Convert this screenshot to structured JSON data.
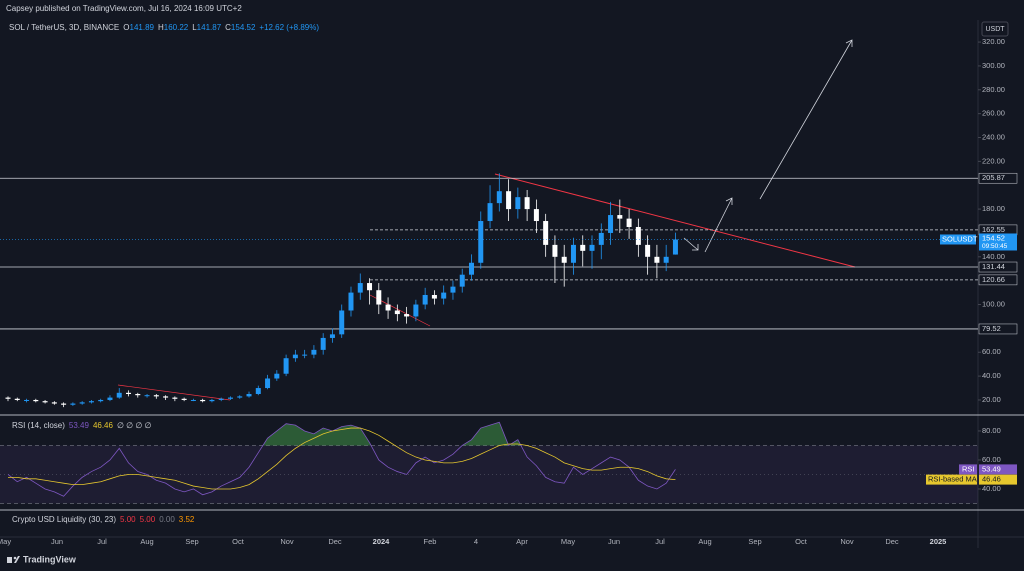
{
  "header": {
    "publisher": "Capsey published on TradingView.com, Jul 16, 2024 16:09 UTC+2",
    "symbol": "SOL / TetherUS, 3D, BINANCE",
    "change": "+12.62 (+8.89%)",
    "currency": "USDT",
    "ticker_tag": "SOLUSDT",
    "countdown": "09:50:45"
  },
  "chart_data": {
    "type": "candlestick",
    "open": [
      22,
      21,
      20,
      20,
      19,
      18,
      17,
      16,
      17,
      18,
      19,
      20,
      22,
      26,
      25,
      24,
      24,
      23,
      22,
      21,
      20,
      20,
      19,
      20,
      21,
      22,
      23,
      25,
      30,
      38,
      42,
      55,
      58,
      58,
      62,
      72,
      75,
      95,
      110,
      118,
      112,
      100,
      95,
      92,
      90,
      100,
      108,
      105,
      110,
      115,
      125,
      135,
      170,
      185,
      195,
      180,
      190,
      180,
      170,
      150,
      140,
      135,
      150,
      145,
      150,
      160,
      175,
      172,
      165,
      150,
      140,
      135,
      141.89
    ],
    "high": [
      23,
      22,
      21,
      21,
      20,
      19,
      18,
      18,
      19,
      20,
      21,
      24,
      30,
      28,
      26,
      25,
      25,
      24,
      23,
      22,
      21,
      21,
      21,
      22,
      23,
      24,
      27,
      32,
      41,
      45,
      58,
      62,
      62,
      66,
      76,
      80,
      100,
      115,
      126,
      122,
      118,
      106,
      100,
      98,
      104,
      114,
      112,
      116,
      120,
      130,
      142,
      178,
      200,
      210,
      205,
      198,
      196,
      188,
      176,
      158,
      150,
      156,
      158,
      158,
      168,
      186,
      188,
      180,
      172,
      158,
      150,
      150,
      160.22
    ],
    "low": [
      19,
      19,
      18,
      18,
      17,
      16,
      14,
      15,
      16,
      17,
      18,
      19,
      21,
      23,
      22,
      22,
      21,
      20,
      19,
      19,
      19,
      18,
      18,
      19,
      20,
      21,
      22,
      24,
      29,
      36,
      40,
      52,
      55,
      55,
      58,
      68,
      72,
      90,
      104,
      100,
      92,
      88,
      86,
      84,
      86,
      96,
      100,
      100,
      104,
      110,
      120,
      130,
      164,
      178,
      170,
      172,
      170,
      160,
      140,
      118,
      115,
      125,
      132,
      130,
      138,
      150,
      160,
      155,
      140,
      125,
      122,
      128,
      141.87
    ],
    "close": [
      21,
      20,
      20,
      19,
      18,
      17,
      16,
      17,
      18,
      19,
      20,
      22,
      26,
      25,
      24,
      24,
      23,
      22,
      21,
      20,
      20,
      19,
      20,
      21,
      22,
      23,
      25,
      30,
      38,
      42,
      55,
      58,
      58,
      62,
      72,
      75,
      95,
      110,
      118,
      112,
      100,
      95,
      92,
      90,
      100,
      108,
      105,
      110,
      115,
      125,
      135,
      170,
      185,
      195,
      180,
      190,
      180,
      170,
      150,
      140,
      135,
      150,
      145,
      150,
      160,
      175,
      172,
      165,
      150,
      140,
      135,
      140,
      154.52
    ],
    "up_color": "#2196f3",
    "down_color": "#ffffff",
    "ylim": [
      7.4,
      338.5
    ],
    "yticks": [
      {
        "value": 20,
        "label": "20.00"
      },
      {
        "value": 40,
        "label": "40.00"
      },
      {
        "value": 60,
        "label": "60.00"
      },
      {
        "value": 100,
        "label": "100.00"
      },
      {
        "value": 140,
        "label": "140.00"
      },
      {
        "value": 180,
        "label": "180.00"
      },
      {
        "value": 220,
        "label": "220.00"
      },
      {
        "value": 240,
        "label": "240.00"
      },
      {
        "value": 260,
        "label": "260.00"
      },
      {
        "value": 280,
        "label": "280.00"
      },
      {
        "value": 300,
        "label": "300.00"
      },
      {
        "value": 320,
        "label": "320.00"
      }
    ],
    "levels": [
      205.87,
      162.55,
      131.44,
      120.66,
      79.52
    ],
    "levels_dashed": [
      false,
      true,
      false,
      true,
      false
    ],
    "x_labels": [
      "May",
      "Jun",
      "Jul",
      "Aug",
      "Sep",
      "Oct",
      "Nov",
      "Dec",
      "2024",
      "Feb",
      "4",
      "Apr",
      "May",
      "Jun",
      "Jul",
      "Aug",
      "Sep",
      "Oct",
      "Nov",
      "Dec",
      "2025"
    ],
    "rsi_title": "RSI (14, close)",
    "rsi_extra": "∅ ∅ ∅ ∅",
    "rsi_name": "RSI",
    "ma_name": "RSI-based MA",
    "rsi": [
      50,
      45,
      48,
      44,
      40,
      38,
      35,
      42,
      48,
      52,
      55,
      60,
      68,
      58,
      52,
      50,
      46,
      44,
      40,
      38,
      40,
      36,
      38,
      42,
      45,
      48,
      55,
      65,
      75,
      80,
      85,
      84,
      80,
      78,
      82,
      80,
      83,
      84,
      82,
      72,
      60,
      55,
      52,
      50,
      58,
      62,
      58,
      60,
      64,
      70,
      74,
      82,
      84,
      86,
      70,
      74,
      62,
      56,
      48,
      45,
      44,
      55,
      50,
      54,
      58,
      62,
      60,
      55,
      46,
      42,
      40,
      44,
      53.49
    ],
    "rsi_ma": [
      48,
      48,
      47,
      47,
      46,
      45,
      44,
      43,
      43,
      44,
      45,
      47,
      49,
      50,
      50,
      49,
      48,
      47,
      46,
      44,
      42,
      41,
      40,
      40,
      40,
      41,
      43,
      47,
      52,
      57,
      63,
      68,
      72,
      75,
      78,
      80,
      81,
      82,
      82,
      80,
      77,
      73,
      69,
      65,
      62,
      60,
      59,
      58,
      58,
      59,
      61,
      64,
      67,
      70,
      71,
      71,
      70,
      68,
      65,
      62,
      58,
      56,
      54,
      53,
      53,
      54,
      55,
      55,
      54,
      52,
      49,
      47,
      46.46
    ],
    "rsi_color": "#7e57c2",
    "ma_color": "#e6c72e",
    "rsi_ylim": [
      25.5,
      91
    ],
    "rsi_yticks": [
      {
        "value": 40,
        "label": "40.00"
      },
      {
        "value": 60,
        "label": "60.00"
      },
      {
        "value": 80,
        "label": "80.00"
      }
    ],
    "rsi_bands": [
      30,
      70
    ],
    "liq_title": "Crypto USD Liquidity (30, 23)",
    "liq_values": [
      "5.00",
      "5.00",
      "0.00",
      "3.52"
    ],
    "liq_colors": [
      "#f23645",
      "#f23645",
      "#787b86",
      "#ff9800"
    ]
  },
  "footer": {
    "brand": "TradingView"
  }
}
